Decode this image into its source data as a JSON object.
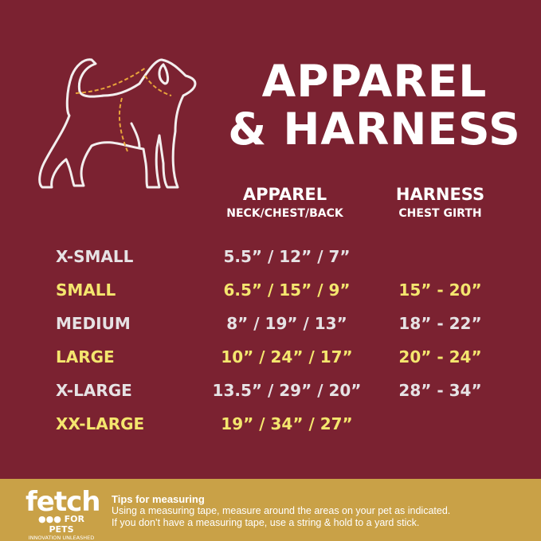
{
  "title": {
    "line1": "APPAREL",
    "line2": "& HARNESS"
  },
  "columns": {
    "apparel": {
      "label": "APPAREL",
      "sub": "NECK/CHEST/BACK"
    },
    "harness": {
      "label": "HARNESS",
      "sub": "CHEST GIRTH"
    }
  },
  "rows": [
    {
      "size": "X-SMALL",
      "apparel": "5.5” / 12” / 7”",
      "harness": ""
    },
    {
      "size": "SMALL",
      "apparel": "6.5” / 15” / 9”",
      "harness": "15” -  20”"
    },
    {
      "size": "MEDIUM",
      "apparel": "8” / 19” / 13”",
      "harness": "18” -  22”"
    },
    {
      "size": "LARGE",
      "apparel": "10” / 24” / 17”",
      "harness": "20” -  24”"
    },
    {
      "size": "X-LARGE",
      "apparel": "13.5” / 29” / 20”",
      "harness": "28” -  34”"
    },
    {
      "size": "XX-LARGE",
      "apparel": "19” / 34” / 27”",
      "harness": ""
    }
  ],
  "footer": {
    "logo": {
      "name": "fetch",
      "sub": "FOR PETS",
      "tagline": "INNOVATION UNLEASHED"
    },
    "tips_title": "Tips for measuring",
    "tips_line1": "Using a measuring tape, measure around the areas on your pet as indicated.",
    "tips_line2": "If you don’t have a measuring tape, use a string & hold to a yard stick."
  },
  "colors": {
    "background": "#7b2231",
    "highlight": "#f4e66e",
    "footer": "#c9a147",
    "measure_lines": "#e8a43a"
  },
  "icons": {
    "illustration": "dog-outline-with-measurement-lines"
  }
}
